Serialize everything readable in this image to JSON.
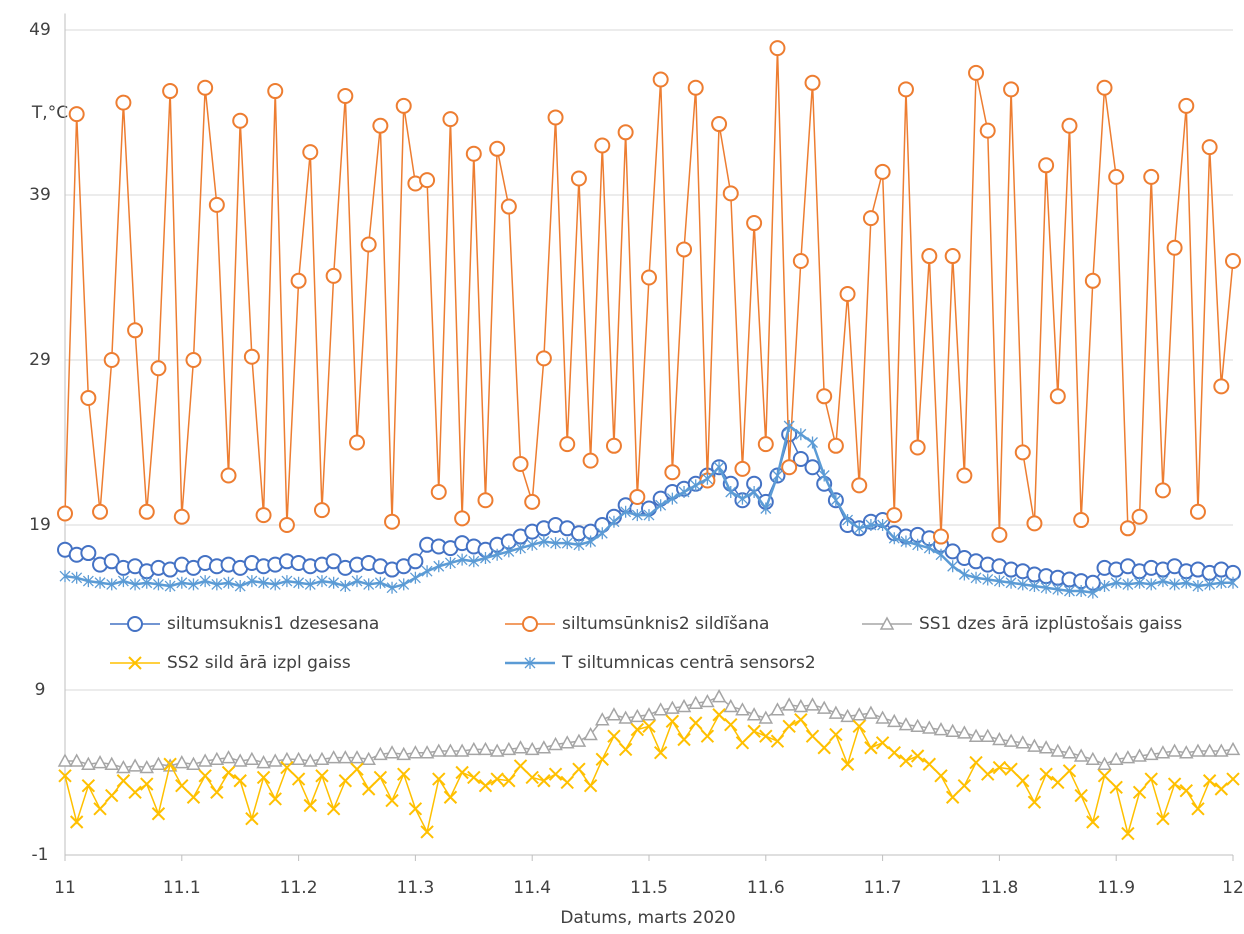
{
  "chart_data": {
    "type": "line",
    "x_label": "Datums, marts 2020",
    "y_label": "T,°C",
    "xlim": [
      11,
      12
    ],
    "xticks": [
      11,
      11.1,
      11.2,
      11.3,
      11.4,
      11.5,
      11.6,
      11.7,
      11.8,
      11.9,
      12
    ],
    "ylim": [
      -1,
      50
    ],
    "yticks": [
      -1,
      9,
      19,
      29,
      39,
      49
    ],
    "grid": true,
    "x": [
      11,
      11.01,
      11.02,
      11.03,
      11.04,
      11.05,
      11.06,
      11.07,
      11.08,
      11.09,
      11.1,
      11.11,
      11.12,
      11.13,
      11.14,
      11.15,
      11.16,
      11.17,
      11.18,
      11.19,
      11.2,
      11.21,
      11.22,
      11.23,
      11.24,
      11.25,
      11.26,
      11.27,
      11.28,
      11.29,
      11.3,
      11.31,
      11.32,
      11.33,
      11.34,
      11.35,
      11.36,
      11.37,
      11.38,
      11.39,
      11.4,
      11.41,
      11.42,
      11.43,
      11.44,
      11.45,
      11.46,
      11.47,
      11.48,
      11.49,
      11.5,
      11.51,
      11.52,
      11.53,
      11.54,
      11.55,
      11.56,
      11.57,
      11.58,
      11.59,
      11.6,
      11.61,
      11.62,
      11.63,
      11.64,
      11.65,
      11.66,
      11.67,
      11.68,
      11.69,
      11.7,
      11.71,
      11.72,
      11.73,
      11.74,
      11.75,
      11.76,
      11.77,
      11.78,
      11.79,
      11.8,
      11.81,
      11.82,
      11.83,
      11.84,
      11.85,
      11.86,
      11.87,
      11.88,
      11.89,
      11.9,
      11.91,
      11.92,
      11.93,
      11.94,
      11.95,
      11.96,
      11.97,
      11.98,
      11.99,
      12
    ],
    "series": [
      {
        "name": "siltumsuknis1 dzesesana",
        "color": "#4472c4",
        "marker": "circle",
        "line_width": 1.5,
        "values": [
          17.5,
          17.2,
          17.3,
          16.6,
          16.8,
          16.4,
          16.5,
          16.2,
          16.4,
          16.3,
          16.6,
          16.4,
          16.7,
          16.5,
          16.6,
          16.4,
          16.7,
          16.5,
          16.6,
          16.8,
          16.7,
          16.5,
          16.6,
          16.8,
          16.4,
          16.6,
          16.7,
          16.5,
          16.3,
          16.5,
          16.8,
          17.8,
          17.7,
          17.6,
          17.9,
          17.7,
          17.5,
          17.8,
          18.0,
          18.3,
          18.6,
          18.8,
          19.0,
          18.8,
          18.5,
          18.6,
          19.0,
          19.5,
          20.2,
          20.0,
          20.0,
          20.6,
          21.0,
          21.2,
          21.5,
          22.0,
          22.5,
          21.5,
          20.5,
          21.5,
          20.4,
          22.0,
          24.5,
          23.0,
          22.5,
          21.5,
          20.5,
          19.0,
          18.8,
          19.2,
          19.3,
          18.5,
          18.3,
          18.4,
          18.2,
          17.8,
          17.4,
          17.0,
          16.8,
          16.6,
          16.5,
          16.3,
          16.2,
          16.0,
          15.9,
          15.8,
          15.7,
          15.6,
          15.5,
          16.4,
          16.3,
          16.5,
          16.2,
          16.4,
          16.3,
          16.5,
          16.2,
          16.3,
          16.1,
          16.3,
          16.1
        ]
      },
      {
        "name": "siltumsūnknis2 sildīšana",
        "color": "#ed7d31",
        "marker": "circle",
        "line_width": 1.5,
        "values": [
          19.7,
          43.9,
          26.7,
          19.8,
          29.0,
          44.6,
          30.8,
          19.8,
          28.5,
          45.3,
          19.5,
          29.0,
          45.5,
          38.4,
          22.0,
          43.5,
          29.2,
          19.6,
          45.3,
          19.0,
          33.8,
          41.6,
          19.9,
          34.1,
          45.0,
          24.0,
          36.0,
          43.2,
          19.2,
          44.4,
          39.7,
          39.9,
          21.0,
          43.6,
          19.4,
          41.5,
          20.5,
          41.8,
          38.3,
          22.7,
          20.4,
          29.1,
          43.7,
          23.9,
          40.0,
          22.9,
          42.0,
          23.8,
          42.8,
          20.7,
          34.0,
          46.0,
          22.2,
          35.7,
          45.5,
          21.7,
          43.3,
          39.1,
          22.4,
          37.3,
          23.9,
          47.9,
          22.5,
          35.0,
          45.8,
          26.8,
          23.8,
          33.0,
          21.4,
          37.6,
          40.4,
          19.6,
          45.4,
          23.7,
          35.3,
          18.3,
          35.3,
          22.0,
          46.4,
          42.9,
          18.4,
          45.4,
          23.4,
          19.1,
          40.8,
          26.8,
          43.2,
          19.3,
          33.8,
          45.5,
          40.1,
          18.8,
          19.5,
          40.1,
          21.1,
          35.8,
          44.4,
          19.8,
          41.9,
          27.4,
          35.0
        ]
      },
      {
        "name": "SS1 dzes ārā izplūstošais gaiss",
        "color": "#a5a5a5",
        "marker": "triangle",
        "line_width": 1.5,
        "values": [
          4.7,
          4.7,
          4.5,
          4.6,
          4.5,
          4.3,
          4.4,
          4.3,
          4.5,
          4.4,
          4.6,
          4.5,
          4.7,
          4.8,
          4.9,
          4.7,
          4.8,
          4.6,
          4.7,
          4.8,
          4.8,
          4.7,
          4.8,
          4.9,
          4.9,
          4.9,
          4.8,
          5.1,
          5.2,
          5.1,
          5.2,
          5.2,
          5.3,
          5.3,
          5.3,
          5.4,
          5.4,
          5.3,
          5.4,
          5.5,
          5.4,
          5.5,
          5.7,
          5.8,
          5.9,
          6.3,
          7.2,
          7.5,
          7.3,
          7.4,
          7.5,
          7.8,
          7.9,
          8.0,
          8.2,
          8.3,
          8.6,
          8.0,
          7.8,
          7.5,
          7.3,
          7.8,
          8.1,
          8.0,
          8.1,
          7.9,
          7.6,
          7.4,
          7.5,
          7.6,
          7.3,
          7.1,
          6.9,
          6.8,
          6.7,
          6.6,
          6.5,
          6.4,
          6.2,
          6.2,
          6.0,
          5.9,
          5.8,
          5.6,
          5.5,
          5.3,
          5.2,
          5.0,
          4.8,
          4.5,
          4.8,
          4.9,
          5.0,
          5.1,
          5.2,
          5.3,
          5.2,
          5.3,
          5.3,
          5.3,
          5.4
        ]
      },
      {
        "name": "SS2 sild ārā izpl gaiss",
        "color": "#ffc000",
        "marker": "x",
        "line_width": 1.5,
        "values": [
          3.8,
          1.0,
          3.2,
          1.8,
          2.6,
          3.5,
          2.8,
          3.3,
          1.5,
          4.5,
          3.2,
          2.5,
          3.8,
          2.8,
          4.0,
          3.5,
          1.2,
          3.7,
          2.4,
          4.3,
          3.6,
          2.0,
          3.8,
          1.8,
          3.5,
          4.2,
          3.0,
          3.7,
          2.3,
          3.9,
          1.8,
          0.4,
          3.6,
          2.5,
          4.0,
          3.7,
          3.2,
          3.6,
          3.5,
          4.4,
          3.7,
          3.5,
          3.9,
          3.4,
          4.2,
          3.2,
          4.8,
          6.2,
          5.4,
          6.6,
          6.8,
          5.2,
          7.1,
          6.0,
          7.0,
          6.2,
          7.5,
          6.9,
          5.8,
          6.5,
          6.2,
          5.9,
          6.8,
          7.2,
          6.2,
          5.5,
          6.3,
          4.5,
          6.8,
          5.5,
          5.8,
          5.2,
          4.7,
          5.0,
          4.5,
          3.8,
          2.5,
          3.2,
          4.6,
          3.9,
          4.3,
          4.2,
          3.5,
          2.2,
          3.9,
          3.4,
          4.1,
          2.6,
          1.0,
          3.8,
          3.1,
          0.3,
          2.8,
          3.6,
          1.2,
          3.3,
          2.9,
          1.8,
          3.5,
          3.0,
          3.6
        ]
      },
      {
        "name": "T siltumnicas centrā sensors2",
        "color": "#5b9bd5",
        "marker": "star",
        "line_width": 2.5,
        "values": [
          15.9,
          15.8,
          15.6,
          15.5,
          15.4,
          15.6,
          15.4,
          15.5,
          15.4,
          15.3,
          15.5,
          15.4,
          15.6,
          15.4,
          15.5,
          15.3,
          15.6,
          15.5,
          15.4,
          15.6,
          15.5,
          15.4,
          15.6,
          15.5,
          15.3,
          15.6,
          15.4,
          15.5,
          15.2,
          15.4,
          15.8,
          16.2,
          16.5,
          16.7,
          16.9,
          16.8,
          17.0,
          17.2,
          17.4,
          17.6,
          17.8,
          18.0,
          17.9,
          17.9,
          17.8,
          18.0,
          18.5,
          19.2,
          19.8,
          19.6,
          19.6,
          20.2,
          20.6,
          21.0,
          21.4,
          21.8,
          22.5,
          21.0,
          20.6,
          21.0,
          20.0,
          22.0,
          25.0,
          24.5,
          24.0,
          22.0,
          20.5,
          19.3,
          18.8,
          19.0,
          19.0,
          18.2,
          18.0,
          17.8,
          17.6,
          17.2,
          16.5,
          16.0,
          15.8,
          15.7,
          15.6,
          15.5,
          15.4,
          15.3,
          15.2,
          15.1,
          15.0,
          15.0,
          14.9,
          15.3,
          15.5,
          15.4,
          15.5,
          15.4,
          15.6,
          15.4,
          15.5,
          15.3,
          15.4,
          15.5,
          15.5
        ]
      }
    ]
  }
}
